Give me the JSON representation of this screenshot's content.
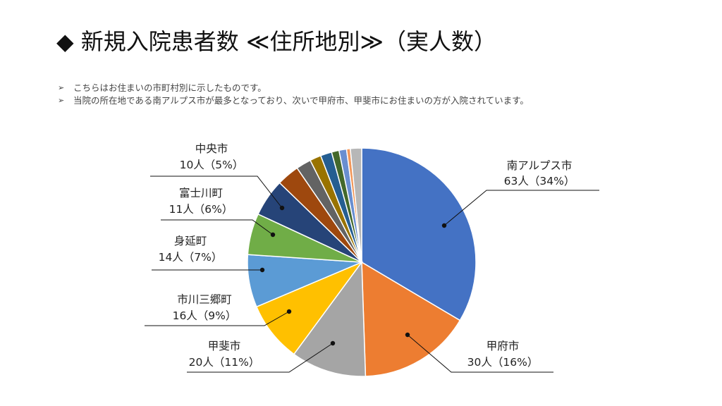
{
  "slide": {
    "title": "◆ 新規入院患者数 ≪住所地別≫（実人数）",
    "bullet_mark": "➢",
    "bullets": [
      "こちらはお住まいの市町村別に示したものです。",
      "当院の所在地である南アルプス市が最多となっており、次いで甲府市、甲斐市にお住まいの方が入院されています。"
    ]
  },
  "chart_data": {
    "type": "pie",
    "title": "",
    "slices": [
      {
        "name": "南アルプス市",
        "value": 63,
        "label_name": "南アルプス市",
        "label_value": "63人（34%）",
        "color": "#4472C4"
      },
      {
        "name": "甲府市",
        "value": 30,
        "label_name": "甲府市",
        "label_value": "30人（16%）",
        "color": "#ED7D31"
      },
      {
        "name": "甲斐市",
        "value": 20,
        "label_name": "甲斐市",
        "label_value": "20人（11%）",
        "color": "#A5A5A5"
      },
      {
        "name": "市川三郷町",
        "value": 16,
        "label_name": "市川三郷町",
        "label_value": "16人（9%）",
        "color": "#FFC000"
      },
      {
        "name": "身延町",
        "value": 14,
        "label_name": "身延町",
        "label_value": "14人（7%）",
        "color": "#5B9BD5"
      },
      {
        "name": "富士川町",
        "value": 11,
        "label_name": "富士川町",
        "label_value": "11人（6%）",
        "color": "#70AD47"
      },
      {
        "name": "中央市",
        "value": 10,
        "label_name": "中央市",
        "label_value": "10人（5%）",
        "color": "#264478"
      },
      {
        "name": "",
        "value": 6,
        "color": "#9E480E"
      },
      {
        "name": "",
        "value": 4,
        "color": "#636363"
      },
      {
        "name": "",
        "value": 3,
        "color": "#997300"
      },
      {
        "name": "",
        "value": 3,
        "color": "#255E91"
      },
      {
        "name": "",
        "value": 2,
        "color": "#43682B"
      },
      {
        "name": "",
        "value": 2,
        "color": "#698ED0"
      },
      {
        "name": "",
        "value": 1,
        "color": "#F1975A"
      },
      {
        "name": "",
        "value": 3,
        "color": "#B7B7B7"
      }
    ]
  }
}
